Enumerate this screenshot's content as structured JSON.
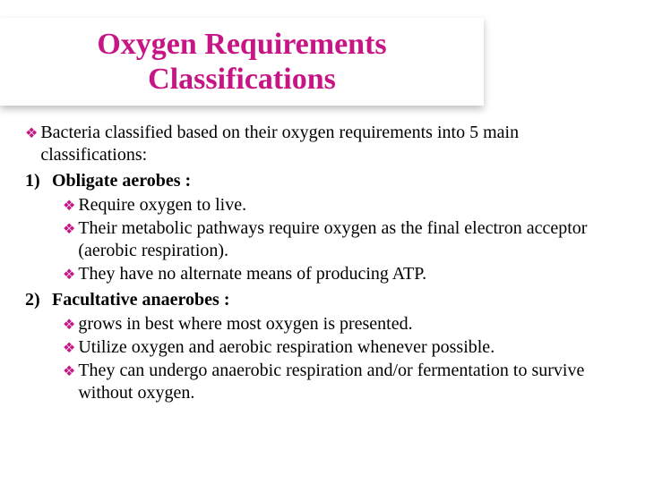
{
  "title": "Oxygen Requirements Classifications",
  "intro": "Bacteria classified based on their oxygen requirements into 5 main classifications:",
  "items": [
    {
      "num": "1)",
      "heading": "Obligate aerobes :",
      "subs": [
        "Require oxygen to live.",
        "Their metabolic pathways require oxygen as the final electron acceptor (aerobic respiration).",
        "They have no alternate means of producing ATP."
      ]
    },
    {
      "num": "2)",
      "heading": "Facultative anaerobes :",
      "subs": [
        "grows in best where most oxygen is presented.",
        "Utilize oxygen and aerobic respiration whenever possible.",
        "They can undergo anaerobic respiration and/or fermentation to survive without oxygen."
      ]
    }
  ],
  "colors": {
    "accent": "#c71585",
    "text": "#000000",
    "background": "#ffffff"
  },
  "diamond_glyph": "❖"
}
